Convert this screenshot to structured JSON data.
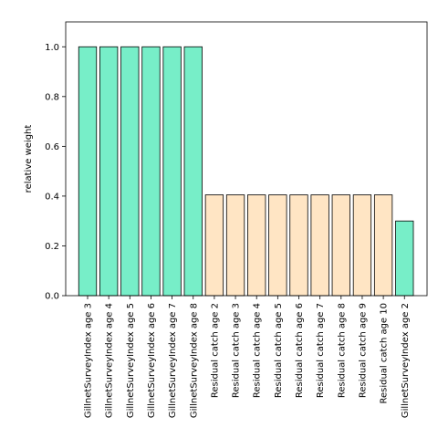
{
  "chart_data": {
    "type": "bar",
    "title": "",
    "xlabel": "",
    "ylabel": "relative weight",
    "ylim": [
      0,
      1.1
    ],
    "yticks": [
      "0.0",
      "0.2",
      "0.4",
      "0.6",
      "0.8",
      "1.0"
    ],
    "grid": false,
    "categories": [
      "GillnetSurveyIndex age 3",
      "GillnetSurveyIndex age 4",
      "GillnetSurveyIndex age 5",
      "GillnetSurveyIndex age 6",
      "GillnetSurveyIndex age 7",
      "GillnetSurveyIndex age 8",
      "Residual catch age 2",
      "Residual catch age 3",
      "Residual catch age 4",
      "Residual catch age 5",
      "Residual catch age 6",
      "Residual catch age 7",
      "Residual catch age 8",
      "Residual catch age 9",
      "Residual catch age 10",
      "GillnetSurveyIndex age 2"
    ],
    "values": [
      1.0,
      1.0,
      1.0,
      1.0,
      1.0,
      1.0,
      0.405,
      0.405,
      0.405,
      0.405,
      0.405,
      0.405,
      0.405,
      0.405,
      0.405,
      0.3
    ],
    "colors": [
      "#77eec8",
      "#77eec8",
      "#77eec8",
      "#77eec8",
      "#77eec8",
      "#77eec8",
      "#ffe5c4",
      "#ffe5c4",
      "#ffe5c4",
      "#ffe5c4",
      "#ffe5c4",
      "#ffe5c4",
      "#ffe5c4",
      "#ffe5c4",
      "#ffe5c4",
      "#77eec8"
    ]
  }
}
